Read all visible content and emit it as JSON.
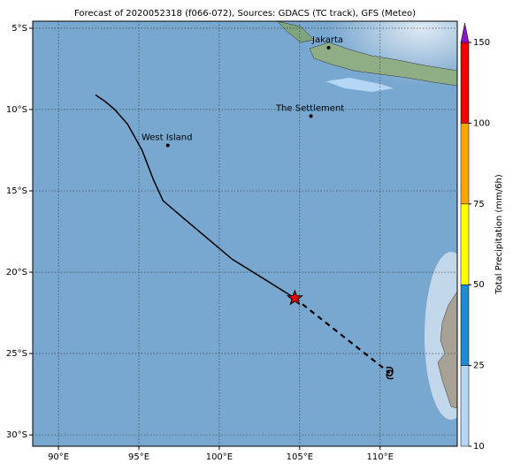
{
  "map": {
    "title": "Forecast of 2020052318 (f066-072), Sources: GDACS (TC track), GFS (Meteo)",
    "xlim": [
      88.4,
      114.8
    ],
    "ylim": [
      -30.7,
      -4.57
    ],
    "xticks": [
      {
        "value": 90,
        "label": "90°E"
      },
      {
        "value": 95,
        "label": "95°E"
      },
      {
        "value": 100,
        "label": "100°E"
      },
      {
        "value": 105,
        "label": "105°E"
      },
      {
        "value": 110,
        "label": "110°E"
      }
    ],
    "yticks": [
      {
        "value": -5,
        "label": "5°S"
      },
      {
        "value": -10,
        "label": "10°S"
      },
      {
        "value": -15,
        "label": "15°S"
      },
      {
        "value": -20,
        "label": "20°S"
      },
      {
        "value": -25,
        "label": "25°S"
      },
      {
        "value": -30,
        "label": "30°S"
      }
    ],
    "places": [
      {
        "name": "Jakarta",
        "lon": 106.8,
        "lat": -6.2
      },
      {
        "name": "The Settlement",
        "lon": 105.7,
        "lat": -10.4
      },
      {
        "name": "West Island",
        "lon": 96.8,
        "lat": -12.2
      }
    ],
    "track": {
      "lon": [
        92.3,
        92.9,
        93.5,
        94.3,
        95.2,
        95.9,
        96.5,
        97.8,
        99.0,
        100.8,
        102.6,
        104.7
      ],
      "lat": [
        -9.1,
        -9.5,
        -10.0,
        -10.9,
        -12.5,
        -14.3,
        -15.6,
        -16.7,
        -17.7,
        -19.2,
        -20.3,
        -21.6
      ]
    },
    "forecast": {
      "lon": [
        104.7,
        110.6
      ],
      "lat": [
        -21.6,
        -26.2
      ]
    },
    "colorbar": {
      "label": "Total Precipitation (mm/6h)",
      "ticks": [
        10,
        25,
        50,
        75,
        100,
        150
      ],
      "colors": [
        "#b5d6f5",
        "#1f8bd2",
        "#ffff00",
        "#ffa500",
        "#ee0000"
      ],
      "extend_color": "#8a16c8"
    }
  }
}
